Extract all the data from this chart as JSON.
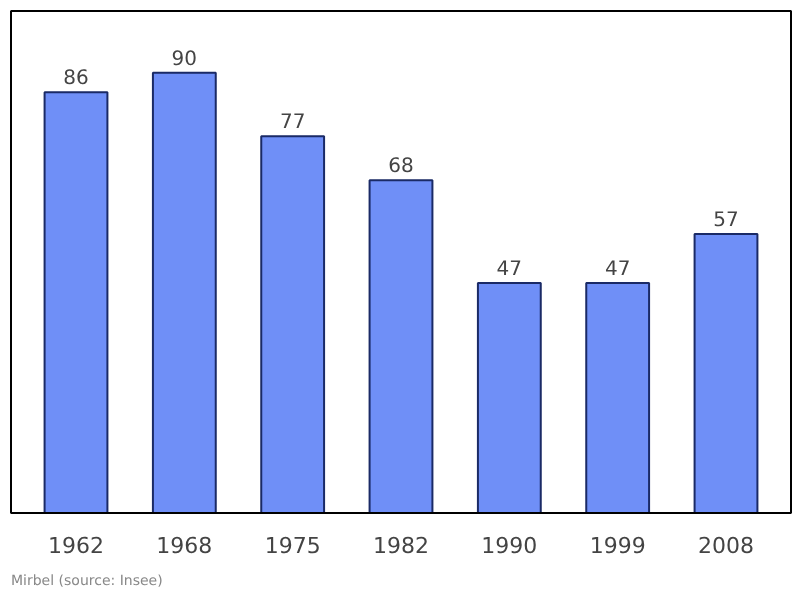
{
  "chart_data": {
    "type": "bar",
    "categories": [
      "1962",
      "1968",
      "1975",
      "1982",
      "1990",
      "1999",
      "2008"
    ],
    "values": [
      86,
      90,
      77,
      68,
      47,
      47,
      57
    ],
    "color": "#6f8ff7",
    "data_labels": true,
    "grid": false,
    "annotations": [
      "Mirbel    (source: Insee)"
    ]
  }
}
